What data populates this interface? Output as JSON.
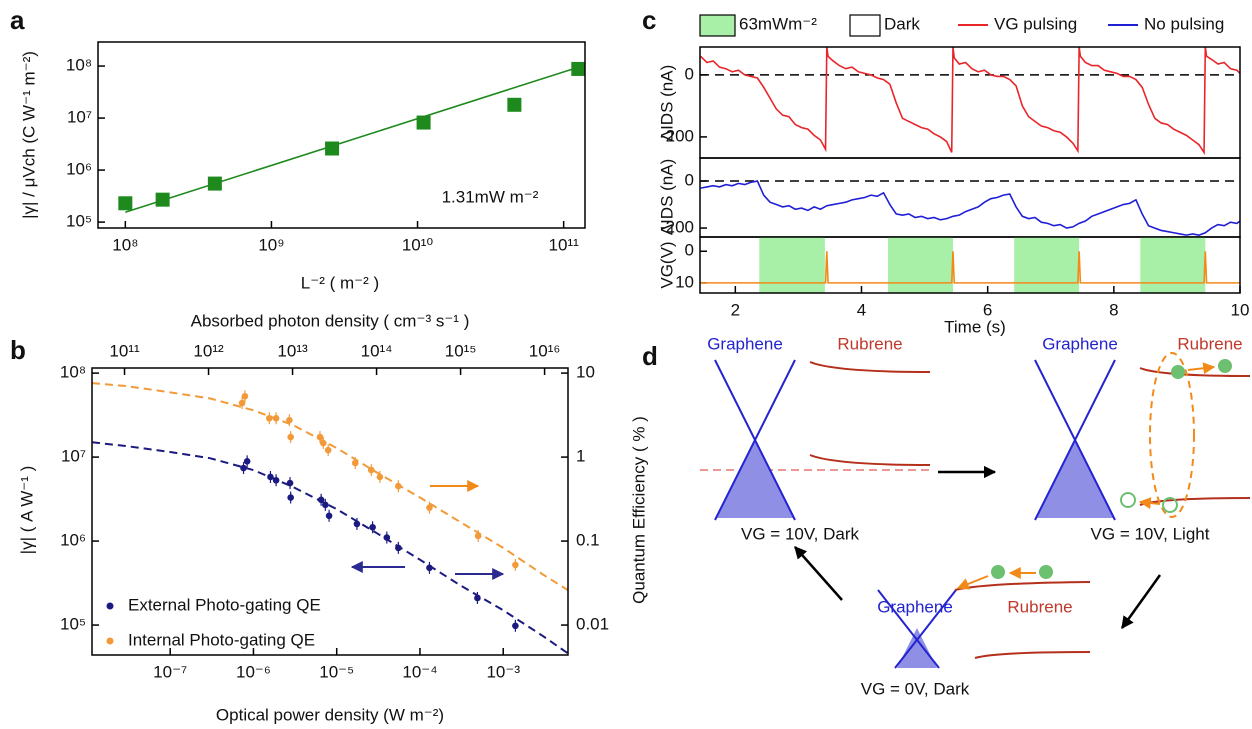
{
  "chart_data": [
    {
      "type": "scatter",
      "panel": "a",
      "xlabel": "L⁻² ( m⁻² )",
      "ylabel": "|γ| / μVch (C W⁻¹ m⁻²)",
      "annotation": "1.31mW m⁻²",
      "xlog": true,
      "ylog": true,
      "xlim": [
        65000000.0,
        140000000000.0
      ],
      "ylim": [
        77000.0,
        290000000.0
      ],
      "xticks": [
        {
          "value": 100000000.0,
          "label": "10⁸"
        },
        {
          "value": 1000000000.0,
          "label": "10⁹"
        },
        {
          "value": 10000000000.0,
          "label": "10¹⁰"
        },
        {
          "value": 100000000000.0,
          "label": "10¹¹"
        }
      ],
      "yticks": [
        {
          "value": 100000.0,
          "label": "10⁵"
        },
        {
          "value": 1000000.0,
          "label": "10⁶"
        },
        {
          "value": 10000000.0,
          "label": "10⁷"
        },
        {
          "value": 100000000.0,
          "label": "10⁸"
        }
      ],
      "series": [
        {
          "color": "#1e8a1e",
          "marker": "square",
          "x": [
            100000000.0,
            180000000.0,
            410000000.0,
            2600000000.0,
            11000000000.0,
            46000000000.0,
            126000000000.0
          ],
          "values": [
            230000.0,
            270000.0,
            550000.0,
            2600000.0,
            8200000.0,
            18000000.0,
            88000000.0
          ]
        },
        {
          "color": "#1e8a1e",
          "x": [
            100000000.0,
            126000000000.0
          ],
          "values": [
            155000.0,
            95000000.0
          ]
        }
      ]
    },
    {
      "type": "scatter",
      "panel": "b",
      "xlabel": "Optical power density (W m⁻²)",
      "x2label": "Absorbed photon density ( cm⁻³ s⁻¹ )",
      "ylabel": "|γ| ( A W⁻¹ )",
      "y2label": "Quantum Efficiency ( % )",
      "xlog": true,
      "ylog": true,
      "xlim": [
        1.15e-08,
        0.006
      ],
      "ylim": [
        44000.0,
        115000000.0
      ],
      "y2lim": [
        0.0044,
        11.5
      ],
      "x2lim": [
        41000000000.0,
        1.9e+16
      ],
      "xticks": [
        {
          "value": 1e-07,
          "label": "10⁻⁷"
        },
        {
          "value": 1e-06,
          "label": "10⁻⁶"
        },
        {
          "value": 1e-05,
          "label": "10⁻⁵"
        },
        {
          "value": 0.0001,
          "label": "10⁻⁴"
        },
        {
          "value": 0.001,
          "label": "10⁻³"
        }
      ],
      "x2ticks": [
        {
          "value": 100000000000.0,
          "label": "10¹¹"
        },
        {
          "value": 1000000000000.0,
          "label": "10¹²"
        },
        {
          "value": 10000000000000.0,
          "label": "10¹³"
        },
        {
          "value": 100000000000000.0,
          "label": "10¹⁴"
        },
        {
          "value": 1000000000000000.0,
          "label": "10¹⁵"
        },
        {
          "value": 1e+16,
          "label": "10¹⁶"
        }
      ],
      "yticks": [
        {
          "value": 100000.0,
          "label": "10⁵"
        },
        {
          "value": 1000000.0,
          "label": "10⁶"
        },
        {
          "value": 10000000.0,
          "label": "10⁷"
        },
        {
          "value": 100000000.0,
          "label": "10⁸"
        }
      ],
      "y2ticks": [
        0.01,
        0.1,
        1,
        10
      ],
      "series": [
        {
          "name": "External Photo-gating QE",
          "color": "#1a1a80",
          "marker": "circle",
          "x": [
            7.6e-07,
            8.4e-07,
            1.6e-06,
            1.87e-06,
            2.75e-06,
            2.8e-06,
            6.5e-06,
            7.3e-06,
            8.1e-06,
            1.75e-05,
            2.7e-05,
            4e-05,
            5.5e-05,
            0.00013,
            0.00049,
            0.0014
          ],
          "values": [
            7400000.0,
            8900000.0,
            5800000.0,
            5300000.0,
            4900000.0,
            3300000.0,
            3100000.0,
            2700000.0,
            2000000.0,
            1600000.0,
            1460000.0,
            1100000.0,
            830000.0,
            480000.0,
            210000.0,
            98000.0
          ]
        },
        {
          "name": "Internal Photo-gating QE",
          "color": "#f29a3a",
          "marker": "circle",
          "axis": "y2",
          "x": [
            7.3e-07,
            7.9e-07,
            1.55e-06,
            1.87e-06,
            2.7e-06,
            2.8e-06,
            6.3e-06,
            6.9e-06,
            7.9e-06,
            1.67e-05,
            2.6e-05,
            3.3e-05,
            5.5e-05,
            0.00013,
            0.0005,
            0.0014
          ],
          "values": [
            4.4,
            5.3,
            2.9,
            2.9,
            2.75,
            1.73,
            1.73,
            1.47,
            1.21,
            0.85,
            0.7,
            0.58,
            0.45,
            0.25,
            0.115,
            0.052
          ]
        },
        {
          "color": "#1a1a80",
          "dashed": true,
          "x": [
            1.15e-08,
            3e-08,
            1e-07,
            3e-07,
            1e-06,
            3e-06,
            1e-05,
            3e-05,
            0.0001,
            0.0003,
            0.001,
            0.003,
            0.006
          ],
          "values": [
            15000000.0,
            13500000.0,
            11500000.0,
            9700000.0,
            7000000.0,
            4400000.0,
            2400000.0,
            1250000.0,
            600000.0,
            300000.0,
            150000.0,
            74000.0,
            46000.0
          ]
        },
        {
          "color": "#f29a3a",
          "dashed": true,
          "axis": "y2",
          "x": [
            1.15e-08,
            3e-08,
            1e-07,
            3e-07,
            1e-06,
            3e-06,
            1e-05,
            3e-05,
            0.0001,
            0.0003,
            0.001,
            0.003,
            0.006
          ],
          "values": [
            7.6,
            7.0,
            5.9,
            5.0,
            3.6,
            2.4,
            1.28,
            0.66,
            0.33,
            0.17,
            0.083,
            0.04,
            0.026
          ]
        }
      ]
    },
    {
      "type": "line",
      "panel": "c",
      "ylabel": "ΔIDS (nA)",
      "xlim": [
        1.44,
        10
      ],
      "ylim": [
        -268,
        90
      ],
      "yticks": [
        0,
        -200
      ],
      "hline": 0,
      "legend": [
        {
          "name": "63mWm⁻²",
          "color": "#a8f0a8"
        },
        {
          "name": "Dark",
          "color": "#ffffff"
        }
      ],
      "series": [
        {
          "name": "VG pulsing",
          "color": "#e8262a",
          "x": [
            1.45,
            1.55,
            1.65,
            1.75,
            1.85,
            1.95,
            2.05,
            2.15,
            2.25,
            2.35,
            2.45,
            2.55,
            2.65,
            2.75,
            2.85,
            2.95,
            3.05,
            3.15,
            3.25,
            3.35,
            3.43,
            3.45,
            3.47,
            3.55,
            3.65,
            3.75,
            3.85,
            3.95,
            4.05,
            4.15,
            4.25,
            4.35,
            4.45,
            4.55,
            4.65,
            4.75,
            4.85,
            4.95,
            5.05,
            5.15,
            5.25,
            5.35,
            5.43,
            5.45,
            5.47,
            5.55,
            5.65,
            5.75,
            5.85,
            5.95,
            6.05,
            6.15,
            6.25,
            6.35,
            6.45,
            6.55,
            6.65,
            6.75,
            6.85,
            6.95,
            7.05,
            7.15,
            7.25,
            7.35,
            7.43,
            7.45,
            7.47,
            7.55,
            7.65,
            7.75,
            7.85,
            7.95,
            8.05,
            8.15,
            8.25,
            8.35,
            8.45,
            8.55,
            8.65,
            8.75,
            8.85,
            8.95,
            9.05,
            9.15,
            9.25,
            9.35,
            9.43,
            9.45,
            9.47,
            9.55,
            9.65,
            9.75,
            9.85,
            9.95,
            10
          ],
          "values": [
            60,
            40,
            45,
            25,
            20,
            10,
            15,
            0,
            -5,
            -10,
            -40,
            -75,
            -110,
            -130,
            -135,
            -160,
            -170,
            -175,
            -195,
            -210,
            -240,
            90,
            60,
            45,
            30,
            20,
            25,
            10,
            5,
            0,
            -10,
            -15,
            -30,
            -90,
            -140,
            -150,
            -160,
            -170,
            -175,
            -190,
            -200,
            -215,
            -250,
            90,
            55,
            35,
            40,
            20,
            10,
            15,
            0,
            -5,
            -5,
            -15,
            -35,
            -100,
            -135,
            -150,
            -165,
            -170,
            -180,
            -185,
            -200,
            -220,
            -245,
            90,
            60,
            40,
            30,
            30,
            15,
            10,
            5,
            -5,
            -5,
            -15,
            -40,
            -95,
            -140,
            -155,
            -160,
            -175,
            -185,
            -195,
            -210,
            -225,
            -250,
            90,
            60,
            50,
            35,
            40,
            20,
            15,
            5
          ]
        }
      ]
    },
    {
      "type": "line",
      "ylabel": "ΔIDS (nA)",
      "xlim": [
        1.44,
        10
      ],
      "ylim": [
        -238,
        98
      ],
      "yticks": [
        0,
        -200
      ],
      "hline": 0,
      "series": [
        {
          "name": "No pulsing",
          "color": "#1f1fd6",
          "x": [
            1.45,
            1.55,
            1.65,
            1.75,
            1.85,
            1.95,
            2.05,
            2.15,
            2.25,
            2.35,
            2.45,
            2.55,
            2.65,
            2.75,
            2.85,
            2.95,
            3.05,
            3.15,
            3.25,
            3.35,
            3.45,
            3.55,
            3.65,
            3.75,
            3.85,
            3.95,
            4.05,
            4.15,
            4.25,
            4.35,
            4.45,
            4.55,
            4.65,
            4.75,
            4.85,
            4.95,
            5.05,
            5.15,
            5.25,
            5.35,
            5.45,
            5.55,
            5.65,
            5.75,
            5.85,
            5.95,
            6.05,
            6.15,
            6.25,
            6.35,
            6.45,
            6.55,
            6.65,
            6.75,
            6.85,
            6.95,
            7.05,
            7.15,
            7.25,
            7.35,
            7.45,
            7.55,
            7.65,
            7.75,
            7.85,
            7.95,
            8.05,
            8.15,
            8.25,
            8.35,
            8.45,
            8.55,
            8.65,
            8.75,
            8.85,
            8.95,
            9.05,
            9.15,
            9.25,
            9.35,
            9.45,
            9.55,
            9.65,
            9.75,
            9.85,
            9.95,
            10
          ],
          "values": [
            -30,
            -25,
            -20,
            -25,
            -15,
            -20,
            -10,
            -15,
            -5,
            0,
            -60,
            -90,
            -100,
            -110,
            -105,
            -120,
            -115,
            -125,
            -110,
            -120,
            -105,
            -100,
            -95,
            -90,
            -80,
            -75,
            -70,
            -60,
            -65,
            -50,
            -100,
            -140,
            -145,
            -140,
            -155,
            -150,
            -160,
            -155,
            -165,
            -160,
            -150,
            -145,
            -130,
            -120,
            -110,
            -90,
            -75,
            -70,
            -60,
            -55,
            -110,
            -150,
            -160,
            -155,
            -175,
            -180,
            -190,
            -185,
            -200,
            -195,
            -180,
            -170,
            -150,
            -140,
            -130,
            -120,
            -110,
            -100,
            -95,
            -80,
            -140,
            -190,
            -200,
            -210,
            -215,
            -220,
            -225,
            -230,
            -225,
            -230,
            -220,
            -200,
            -185,
            -190,
            -175,
            -180,
            -170
          ]
        }
      ]
    },
    {
      "type": "line",
      "ylabel": "VG(V)",
      "xlabel": "Time (s)",
      "xlim": [
        1.44,
        10
      ],
      "ylim": [
        13.2,
        -4.5
      ],
      "yticks": [
        0,
        10
      ],
      "xticks": [
        2,
        4,
        6,
        8,
        10
      ],
      "shade": [
        [
          2.38,
          3.42
        ],
        [
          4.42,
          5.45
        ],
        [
          6.42,
          7.45
        ],
        [
          8.42,
          9.45
        ]
      ],
      "shade_color": "#a8f0a8",
      "series": [
        {
          "color": "#f28a1a",
          "x": [
            1.44,
            3.43,
            3.45,
            3.47,
            5.43,
            5.45,
            5.47,
            7.43,
            7.45,
            7.47,
            9.43,
            9.45,
            9.47,
            10
          ],
          "values": [
            10,
            10,
            0,
            10,
            10,
            0,
            10,
            10,
            0,
            10,
            10,
            0,
            10,
            10
          ]
        }
      ]
    }
  ],
  "diagram": {
    "panel": "d",
    "states": [
      {
        "graphene": "Graphene",
        "rubrene": "Rubrene",
        "caption": "VG = 10V, Dark"
      },
      {
        "graphene": "Graphene",
        "rubrene": "Rubrene",
        "caption": "VG = 10V, Light"
      },
      {
        "graphene": "Graphene",
        "rubrene": "Rubrene",
        "caption": "VG = 0V, Dark"
      }
    ]
  }
}
